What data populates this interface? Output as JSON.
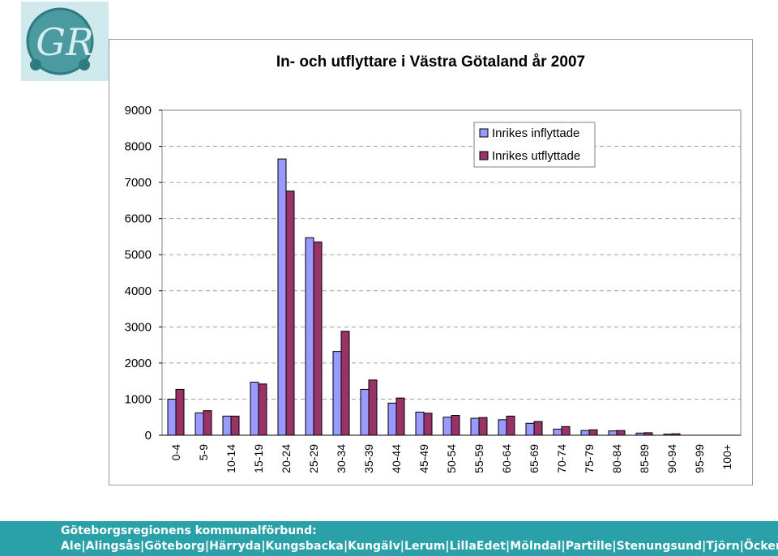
{
  "logo": {
    "text": "GR"
  },
  "chart_data": {
    "type": "bar",
    "title": "In- och utflyttare i Västra Götaland år 2007",
    "xlabel": "",
    "ylabel": "",
    "ylim": [
      0,
      9000
    ],
    "yticks": [
      0,
      1000,
      2000,
      3000,
      4000,
      5000,
      6000,
      7000,
      8000,
      9000
    ],
    "grid": "horizontal-dashed",
    "legend_position": "top-right",
    "categories": [
      "0-4",
      "5-9",
      "10-14",
      "15-19",
      "20-24",
      "25-29",
      "30-34",
      "35-39",
      "40-44",
      "45-49",
      "50-54",
      "55-59",
      "60-64",
      "65-69",
      "70-74",
      "75-79",
      "80-84",
      "85-89",
      "90-94",
      "95-99",
      "100+"
    ],
    "series": [
      {
        "name": "Inrikes inflyttade",
        "color": "#9999ff",
        "values": [
          1000,
          620,
          530,
          1470,
          7650,
          5470,
          2320,
          1270,
          890,
          640,
          500,
          470,
          430,
          330,
          170,
          130,
          120,
          60,
          30,
          0,
          0
        ]
      },
      {
        "name": "Inrikes utflyttade",
        "color": "#993366",
        "values": [
          1270,
          680,
          530,
          1420,
          6760,
          5350,
          2880,
          1530,
          1030,
          610,
          550,
          490,
          530,
          380,
          240,
          150,
          130,
          70,
          40,
          0,
          0
        ]
      }
    ]
  },
  "footer": {
    "line1": "Göteborgsregionens kommunalförbund:",
    "line2": "Ale|Alingsås|Göteborg|Härryda|Kungsbacka|Kungälv|Lerum|LillaEdet|Mölndal|Partille|Stenungsund|Tjörn|Öckerö"
  }
}
